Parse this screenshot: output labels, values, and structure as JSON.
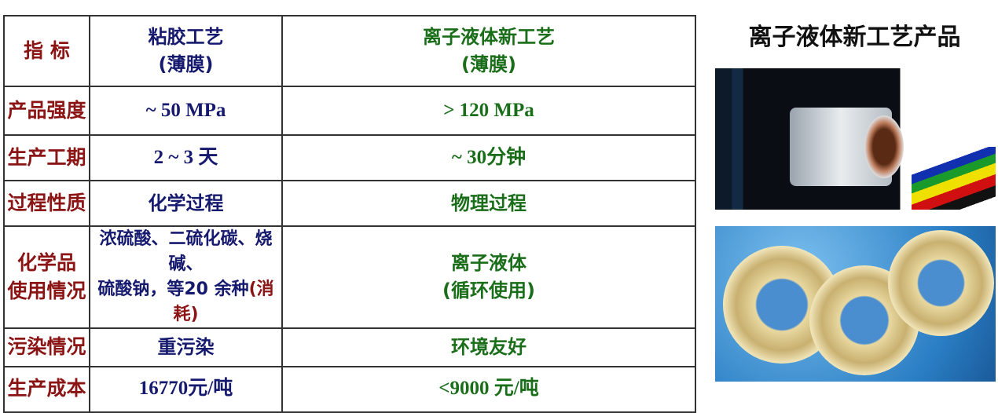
{
  "table": {
    "header": [
      "指 标",
      "粘胶工艺\n(薄膜)",
      "离子液体新工艺\n(薄膜)"
    ],
    "header_lines": {
      "col1": [
        "粘胶工艺",
        "(薄膜)"
      ],
      "col2": [
        "离子液体新工艺",
        "(薄膜)"
      ]
    },
    "rows": [
      {
        "label": "产品强度",
        "viscose": "~ 50 MPa",
        "ionic": "> 120 MPa"
      },
      {
        "label": "生产工期",
        "viscose": "2 ~ 3 天",
        "ionic": "~ 30分钟"
      },
      {
        "label": "过程性质",
        "viscose": "化学过程",
        "ionic": "物理过程"
      },
      {
        "label_lines": [
          "化学品",
          "使用情况"
        ],
        "viscose_lines": [
          "浓硫酸、二硫化碳、烧碱、",
          "硫酸钠，等20 余种",
          "(消耗)"
        ],
        "ionic_lines": [
          "离子液体",
          "(循环使用)"
        ]
      },
      {
        "label": "污染情况",
        "viscose": "重污染",
        "ionic": "环境友好"
      },
      {
        "label": "生产成本",
        "viscose": "16770元/吨",
        "ionic": "<9000 元/吨"
      }
    ]
  },
  "products": {
    "title": "离子液体新工艺产品"
  },
  "colors": {
    "label": "#8b1414",
    "viscose": "#161a6e",
    "ionic": "#1a6e1a"
  }
}
